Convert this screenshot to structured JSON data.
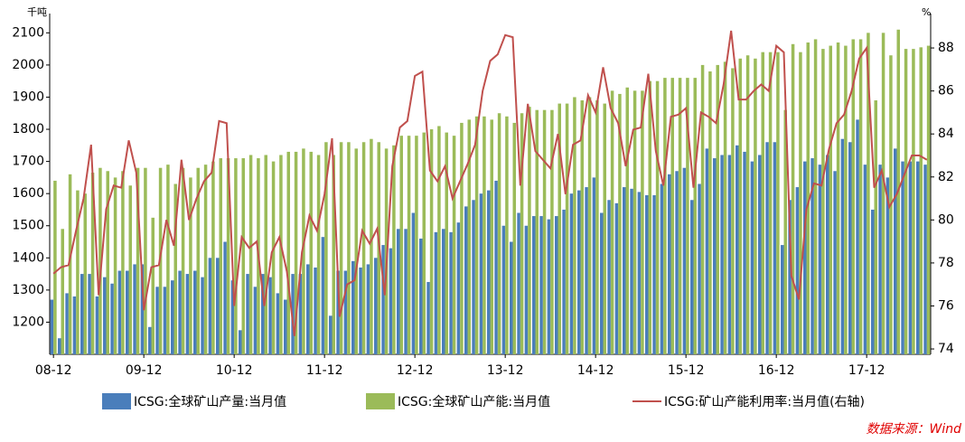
{
  "chart_data": {
    "type": "bar",
    "y_label": "千吨",
    "y2_label": "%",
    "source": "数据来源：Wind",
    "categories": [
      "08-12",
      null,
      null,
      null,
      null,
      null,
      null,
      null,
      null,
      null,
      null,
      null,
      "09-12",
      null,
      null,
      null,
      null,
      null,
      null,
      null,
      null,
      null,
      null,
      null,
      "10-12",
      null,
      null,
      null,
      null,
      null,
      null,
      null,
      null,
      null,
      null,
      null,
      "11-12",
      null,
      null,
      null,
      null,
      null,
      null,
      null,
      null,
      null,
      null,
      null,
      "12-12",
      null,
      null,
      null,
      null,
      null,
      null,
      null,
      null,
      null,
      null,
      null,
      "13-12",
      null,
      null,
      null,
      null,
      null,
      null,
      null,
      null,
      null,
      null,
      null,
      "14-12",
      null,
      null,
      null,
      null,
      null,
      null,
      null,
      null,
      null,
      null,
      null,
      "15-12",
      null,
      null,
      null,
      null,
      null,
      null,
      null,
      null,
      null,
      null,
      null,
      "16-12",
      null,
      null,
      null,
      null,
      null,
      null,
      null,
      null,
      null,
      null,
      null,
      "17-12",
      null,
      null,
      null,
      null,
      null,
      null,
      null,
      null
    ],
    "ylim": [
      1100,
      2160
    ],
    "yticks": [
      1200,
      1300,
      1400,
      1500,
      1600,
      1700,
      1800,
      1900,
      2000,
      2100
    ],
    "y2lim": [
      73.75,
      89.6
    ],
    "y2ticks": [
      74,
      76,
      78,
      80,
      82,
      84,
      86,
      88
    ],
    "series": [
      {
        "name": "ICSG:全球矿山产量:当月值",
        "color": "#4a7ebb",
        "values": [
          1270,
          1150,
          1290,
          1280,
          1350,
          1350,
          1280,
          1340,
          1320,
          1360,
          1360,
          1380,
          1380,
          1185,
          1310,
          1310,
          1330,
          1360,
          1350,
          1360,
          1340,
          1400,
          1400,
          1450,
          1330,
          1175,
          1350,
          1310,
          1350,
          1340,
          1290,
          1270,
          1350,
          1350,
          1380,
          1370,
          1465,
          1220,
          1360,
          1360,
          1390,
          1370,
          1380,
          1400,
          1440,
          1430,
          1490,
          1490,
          1540,
          1460,
          1325,
          1480,
          1490,
          1480,
          1510,
          1560,
          1580,
          1600,
          1610,
          1640,
          1500,
          1450,
          1540,
          1500,
          1530,
          1530,
          1520,
          1530,
          1550,
          1600,
          1610,
          1620,
          1650,
          1540,
          1580,
          1570,
          1620,
          1615,
          1605,
          1595,
          1595,
          1630,
          1660,
          1670,
          1680,
          1580,
          1630,
          1740,
          1710,
          1720,
          1720,
          1750,
          1730,
          1700,
          1720,
          1760,
          1760,
          1440,
          1580,
          1620,
          1700,
          1710,
          1690,
          1720,
          1670,
          1770,
          1760,
          1830,
          1690,
          1550,
          1690,
          1650,
          1740,
          1700,
          1700,
          1700,
          1690
        ]
      },
      {
        "name": "ICSG:全球矿山产能:当月值",
        "color": "#9bbb59",
        "values": [
          1640,
          1490,
          1660,
          1610,
          1600,
          1665,
          1680,
          1670,
          1650,
          1670,
          1625,
          1680,
          1680,
          1525,
          1680,
          1690,
          1630,
          1680,
          1650,
          1680,
          1690,
          1700,
          1710,
          1710,
          1710,
          1710,
          1720,
          1710,
          1720,
          1700,
          1720,
          1730,
          1730,
          1740,
          1730,
          1720,
          1760,
          1720,
          1760,
          1760,
          1740,
          1760,
          1770,
          1760,
          1740,
          1750,
          1780,
          1780,
          1780,
          1790,
          1800,
          1810,
          1790,
          1780,
          1820,
          1830,
          1840,
          1840,
          1830,
          1850,
          1840,
          1820,
          1850,
          1870,
          1860,
          1860,
          1860,
          1880,
          1880,
          1900,
          1890,
          1900,
          1890,
          1880,
          1920,
          1910,
          1930,
          1920,
          1920,
          1950,
          1950,
          1960,
          1960,
          1960,
          1960,
          1960,
          2000,
          1980,
          2000,
          2010,
          1990,
          2020,
          2030,
          2020,
          2040,
          2040,
          2040,
          1860,
          2065,
          2040,
          2070,
          2080,
          2050,
          2060,
          2070,
          2060,
          2080,
          2080,
          2100,
          1890,
          2100,
          2030,
          2110,
          2050,
          2050,
          2055,
          2060
        ]
      },
      {
        "name": "ICSG:矿山产能利用率:当月值(右轴)",
        "color": "#c0504d",
        "axis": "y2",
        "type": "line",
        "values": [
          77.5,
          77.8,
          77.9,
          79.5,
          81,
          83.5,
          76.5,
          80.5,
          81.6,
          81.5,
          83.7,
          82.2,
          75.8,
          77.8,
          77.9,
          80,
          78.8,
          82.8,
          80,
          81,
          81.8,
          82.2,
          84.6,
          84.5,
          76,
          79.2,
          78.7,
          79,
          76,
          78.5,
          79.2,
          77.6,
          74.6,
          78.5,
          80.2,
          79.5,
          81.2,
          83.8,
          75.5,
          77,
          77.2,
          79.5,
          78.9,
          79.6,
          76.5,
          82.5,
          84.3,
          84.6,
          86.7,
          86.9,
          82.3,
          81.8,
          82.5,
          81,
          81.8,
          82.6,
          83.5,
          86,
          87.4,
          87.7,
          88.6,
          88.5,
          81.6,
          85.4,
          83.2,
          82.8,
          82.4,
          84,
          81.2,
          83.5,
          83.7,
          85.8,
          85,
          87.1,
          85.2,
          84.5,
          82.5,
          84.2,
          84.3,
          86.8,
          83.2,
          81.6,
          84.8,
          84.9,
          85.2,
          81.5,
          85,
          84.8,
          84.5,
          86.3,
          88.8,
          85.6,
          85.6,
          86,
          86.3,
          86,
          88.1,
          87.8,
          77.4,
          76.3,
          80.5,
          81.7,
          81.6,
          83.3,
          84.5,
          84.9,
          86,
          87.5,
          88,
          81.5,
          82.3,
          80.6,
          81.2,
          82.1,
          83,
          83,
          82.8
        ]
      }
    ]
  }
}
